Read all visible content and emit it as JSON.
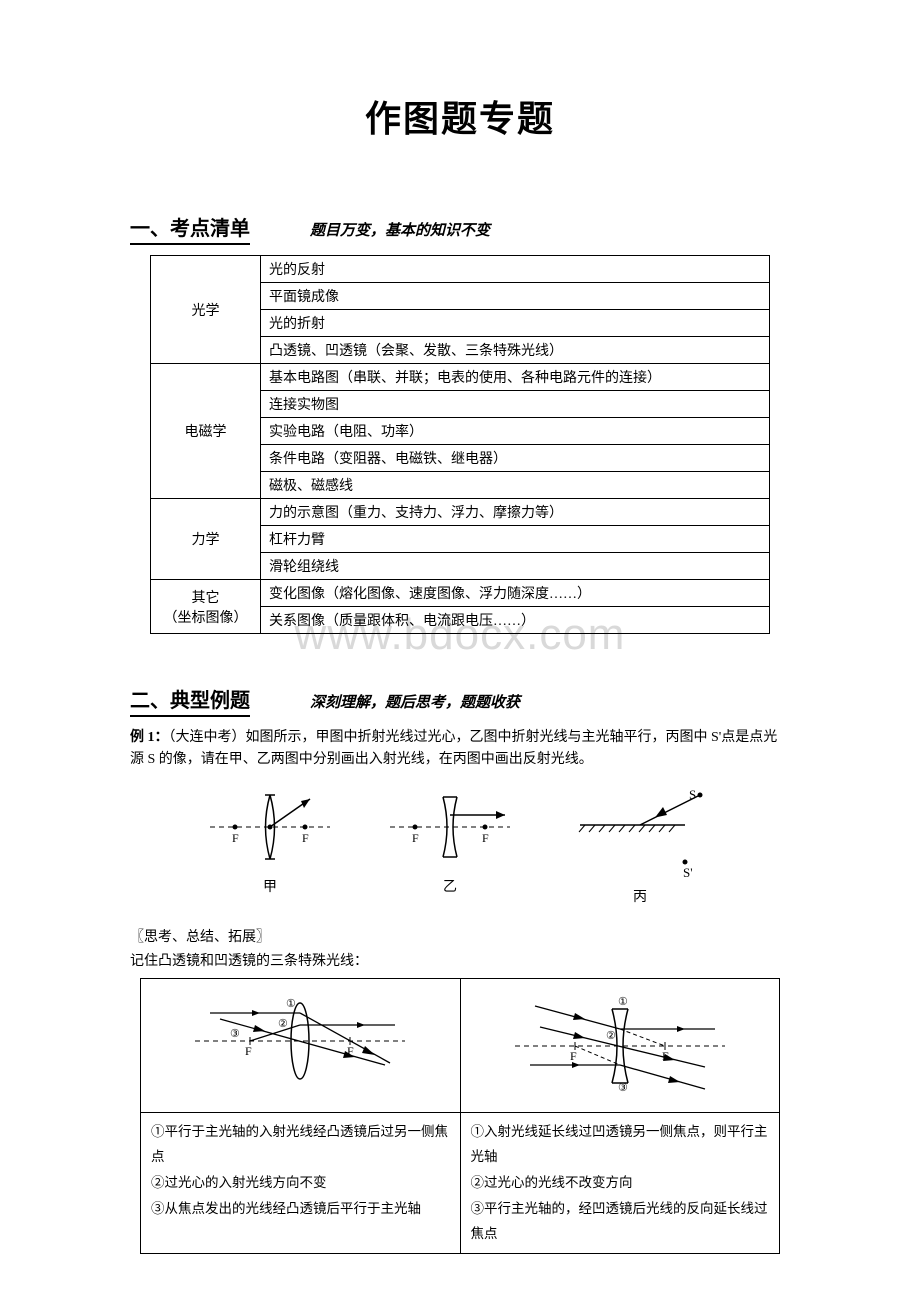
{
  "title": "作图题专题",
  "watermark": "www.bdocx.com",
  "section1": {
    "title": "一、考点清单",
    "subtitle": "题目万变，基本的知识不变",
    "rows": [
      {
        "category": "光学",
        "items": [
          "光的反射",
          "平面镜成像",
          "光的折射",
          "凸透镜、凹透镜（会聚、发散、三条特殊光线）"
        ]
      },
      {
        "category": "电磁学",
        "items": [
          "基本电路图（串联、并联；电表的使用、各种电路元件的连接）",
          "连接实物图",
          "实验电路（电阻、功率）",
          "条件电路（变阻器、电磁铁、继电器）",
          "磁极、磁感线"
        ]
      },
      {
        "category": "力学",
        "items": [
          "力的示意图（重力、支持力、浮力、摩擦力等）",
          "杠杆力臂",
          "滑轮组绕线"
        ]
      },
      {
        "category": "其它\n（坐标图像）",
        "items": [
          "变化图像（熔化图像、速度图像、浮力随深度……）",
          "关系图像（质量跟体积、电流跟电压……）"
        ]
      }
    ]
  },
  "section2": {
    "title": "二、典型例题",
    "subtitle": "深刻理解，题后思考，题题收获",
    "example_label": "例 1：",
    "example_source": "（大连中考）",
    "example_text": "如图所示，甲图中折射光线过光心，乙图中折射光线与主光轴平行，丙图中 S'点是点光源 S 的像，请在甲、乙两图中分别画出入射光线，在丙图中画出反射光线。",
    "diagram_labels": {
      "a": "甲",
      "b": "乙",
      "c": "丙"
    },
    "thinking_header": "〖思考、总结、拓展〗",
    "thinking_sub": "记住凸透镜和凹透镜的三条特殊光线：",
    "lens_left": [
      "①平行于主光轴的入射光线经凸透镜后过另一侧焦点",
      "②过光心的入射光线方向不变",
      "③从焦点发出的光线经凸透镜后平行于主光轴"
    ],
    "lens_right": [
      "①入射光线延长线过凹透镜另一侧焦点，则平行主光轴",
      "②过光心的光线不改变方向",
      "③平行主光轴的，经凹透镜后光线的反向延长线过焦点"
    ]
  },
  "svg": {
    "axis_stroke": "#000",
    "dash": "4,3"
  }
}
